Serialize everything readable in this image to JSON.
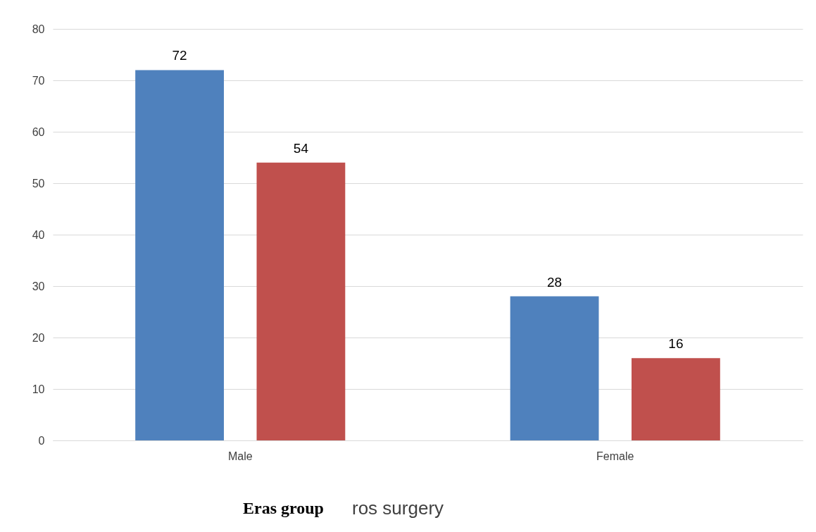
{
  "chart_data": {
    "type": "bar",
    "categories": [
      "Male",
      "Female"
    ],
    "series": [
      {
        "color": "#4f81bd",
        "values": [
          72,
          28
        ]
      },
      {
        "color": "#c0504d",
        "values": [
          54,
          16
        ]
      }
    ],
    "ylim": [
      0,
      80
    ],
    "yticks": [
      0,
      10,
      20,
      30,
      40,
      50,
      60,
      70,
      80
    ],
    "grid": "y",
    "data_labels": true,
    "annotations": [
      "Eras group",
      "ros surgery"
    ]
  }
}
